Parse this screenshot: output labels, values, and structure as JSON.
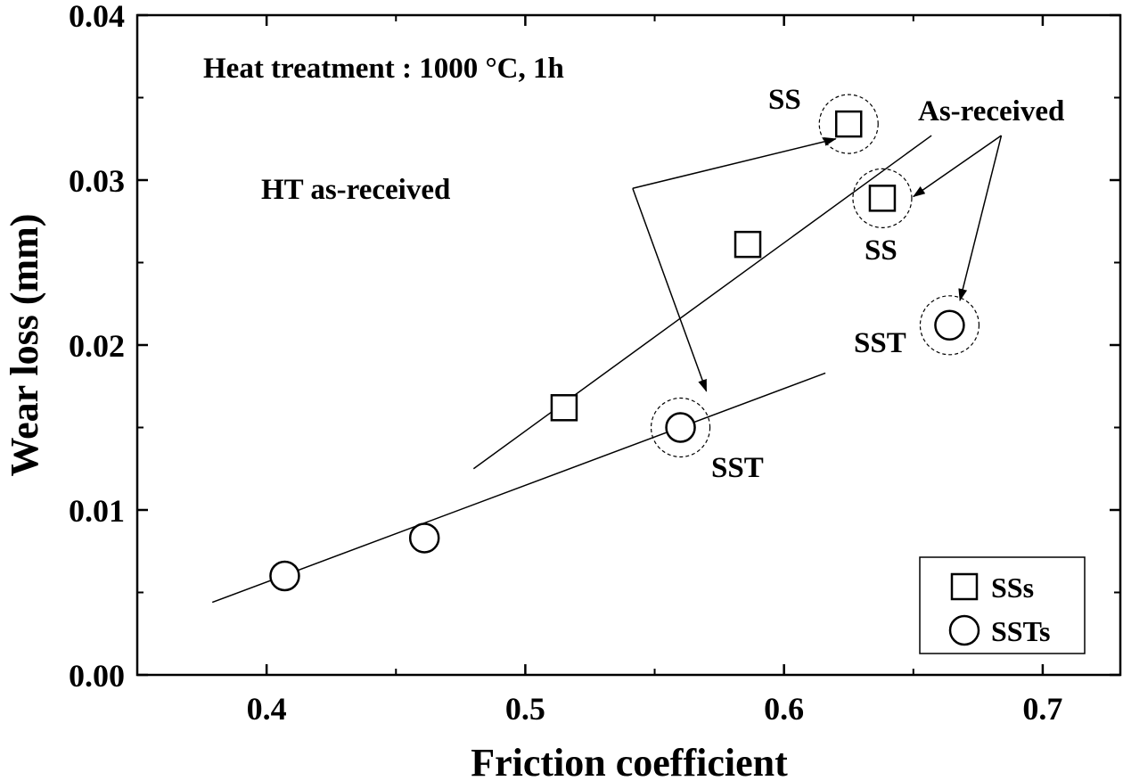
{
  "chart_data": {
    "type": "scatter",
    "xlabel": "Friction coefficient",
    "ylabel": "Wear loss (mm)",
    "xlim": [
      0.35,
      0.73
    ],
    "ylim": [
      0.0,
      0.04
    ],
    "xticks": [
      0.4,
      0.5,
      0.6,
      0.7
    ],
    "xtick_labels": [
      "0.4",
      "0.5",
      "0.6",
      "0.7"
    ],
    "yticks": [
      0.0,
      0.01,
      0.02,
      0.03,
      0.04
    ],
    "ytick_labels": [
      "0.00",
      "0.01",
      "0.02",
      "0.03",
      "0.04"
    ],
    "grid": false,
    "legend_position": "bottom-right",
    "series": [
      {
        "name": "SSs",
        "marker": "square",
        "x": [
          0.515,
          0.586,
          0.625,
          0.638
        ],
        "y": [
          0.0162,
          0.0261,
          0.0334,
          0.0289
        ],
        "fit_line": {
          "x": [
            0.48,
            0.657
          ],
          "y": [
            0.0125,
            0.0327
          ]
        }
      },
      {
        "name": "SSTs",
        "marker": "circle",
        "x": [
          0.407,
          0.461,
          0.56,
          0.664
        ],
        "y": [
          0.006,
          0.0083,
          0.015,
          0.0212
        ],
        "fit_line": {
          "x": [
            0.379,
            0.616
          ],
          "y": [
            0.0044,
            0.0183
          ]
        }
      }
    ],
    "highlights": [
      {
        "x": 0.625,
        "y": 0.0334
      },
      {
        "x": 0.638,
        "y": 0.0289
      },
      {
        "x": 0.56,
        "y": 0.015
      },
      {
        "x": 0.664,
        "y": 0.0212
      }
    ],
    "annotations": {
      "heat_treatment": "Heat treatment : 1000 °C, 1h",
      "ht_as_received": "HT as-received",
      "as_received": "As-received",
      "ss_top": "SS",
      "ss_mid": "SS",
      "sst_mid": "SST",
      "sst_right": "SST"
    },
    "arrows": [
      {
        "from": [
          0.5415,
          0.0295
        ],
        "to": [
          0.62,
          0.0325
        ]
      },
      {
        "from": [
          0.5415,
          0.0295
        ],
        "to": [
          0.57,
          0.0172
        ]
      },
      {
        "from": [
          0.684,
          0.0327
        ],
        "to": [
          0.65,
          0.029
        ]
      },
      {
        "from": [
          0.684,
          0.0327
        ],
        "to": [
          0.668,
          0.0227
        ]
      }
    ]
  }
}
